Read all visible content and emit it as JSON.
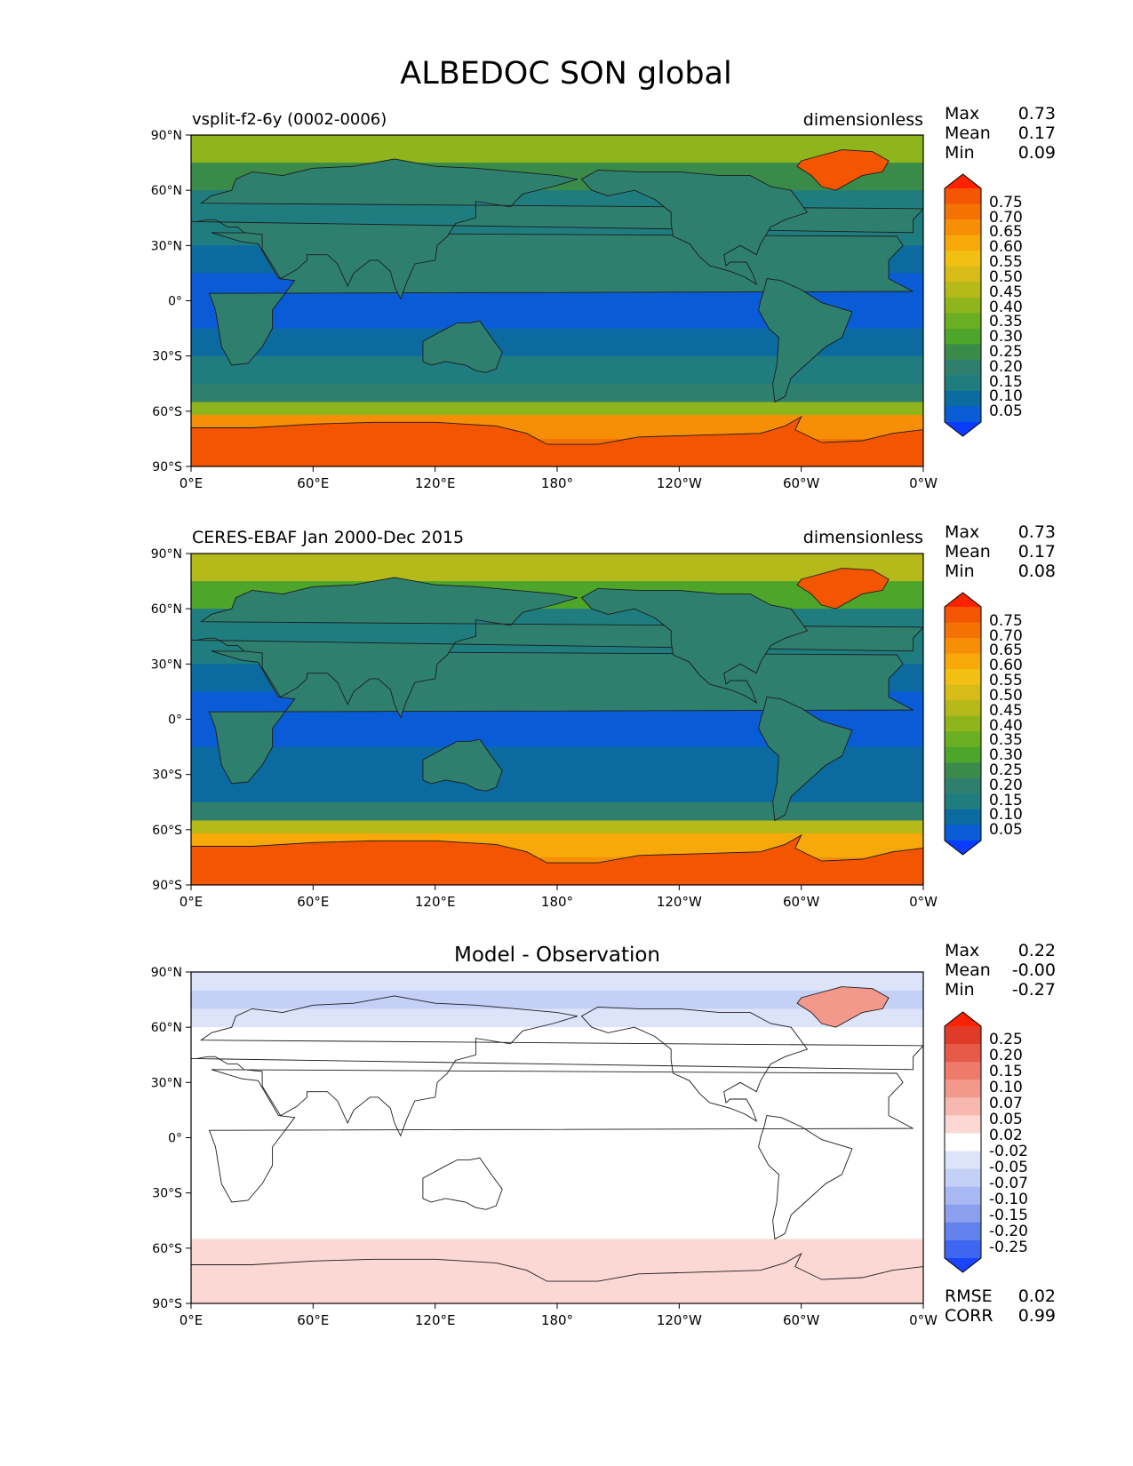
{
  "title": "ALBEDOC SON global",
  "colors": {
    "levels_main": [
      "#0a3cff",
      "#0a5cd6",
      "#0b6aa0",
      "#1f7d80",
      "#2e7f6e",
      "#3a8a4a",
      "#4da62a",
      "#6aae22",
      "#8fb51c",
      "#b5b91a",
      "#d7bb18",
      "#f2c012",
      "#f7a90a",
      "#f78f06",
      "#f57202",
      "#f45500",
      "#ff2200"
    ],
    "levels_diff": [
      "#1a44ff",
      "#3f66f0",
      "#6482ec",
      "#8aa0ee",
      "#a8b8f2",
      "#c4d0f6",
      "#dde4fa",
      "#ffffff",
      "#fbd8d4",
      "#f7b8b0",
      "#f3998c",
      "#ee7a6a",
      "#e85a48",
      "#e03a28",
      "#ff2200"
    ],
    "map_ocean_main": "#0b6aa0",
    "map_land_main": "#2e7f6e",
    "coastline": "#1c1c1c"
  },
  "axes_ticks": {
    "lat": [
      "90°N",
      "60°N",
      "30°N",
      "0°",
      "30°S",
      "60°S",
      "90°S"
    ],
    "lon": [
      "0°E",
      "60°E",
      "120°E",
      "180°",
      "120°W",
      "60°W",
      "0°W"
    ]
  },
  "panels": [
    {
      "label_left": "vsplit-f2-6y (0002-0006)",
      "label_right": "dimensionless",
      "stats": [
        {
          "k": "Max",
          "v": "0.73"
        },
        {
          "k": "Mean",
          "v": "0.17"
        },
        {
          "k": "Min",
          "v": "0.09"
        }
      ],
      "colorbar_ticks": [
        "0.75",
        "0.70",
        "0.65",
        "0.60",
        "0.55",
        "0.50",
        "0.45",
        "0.40",
        "0.35",
        "0.30",
        "0.25",
        "0.20",
        "0.15",
        "0.10",
        "0.05"
      ]
    },
    {
      "label_left": "CERES-EBAF Jan 2000-Dec 2015",
      "label_right": "dimensionless",
      "stats": [
        {
          "k": "Max",
          "v": "0.73"
        },
        {
          "k": "Mean",
          "v": "0.17"
        },
        {
          "k": "Min",
          "v": "0.08"
        }
      ],
      "colorbar_ticks": [
        "0.75",
        "0.70",
        "0.65",
        "0.60",
        "0.55",
        "0.50",
        "0.45",
        "0.40",
        "0.35",
        "0.30",
        "0.25",
        "0.20",
        "0.15",
        "0.10",
        "0.05"
      ]
    },
    {
      "title": "Model - Observation",
      "stats": [
        {
          "k": "Max",
          "v": "0.22"
        },
        {
          "k": "Mean",
          "v": "-0.00"
        },
        {
          "k": "Min",
          "v": "-0.27"
        }
      ],
      "colorbar_ticks": [
        "0.25",
        "0.20",
        "0.15",
        "0.10",
        "0.07",
        "0.05",
        "0.02",
        "-0.02",
        "-0.05",
        "-0.07",
        "-0.10",
        "-0.15",
        "-0.20",
        "-0.25"
      ],
      "bottom_stats": [
        {
          "k": "RMSE",
          "v": "0.02"
        },
        {
          "k": "CORR",
          "v": "0.99"
        }
      ]
    }
  ],
  "chart_data": [
    {
      "type": "heatmap",
      "title": "vsplit-f2-6y (0002-0006)",
      "units": "dimensionless",
      "x_range": [
        0,
        360
      ],
      "y_range": [
        -90,
        90
      ],
      "zonal_profile": [
        {
          "lat": 90,
          "value": 0.52
        },
        {
          "lat": 75,
          "value": 0.32
        },
        {
          "lat": 60,
          "value": 0.18
        },
        {
          "lat": 45,
          "value": 0.15
        },
        {
          "lat": 30,
          "value": 0.14
        },
        {
          "lat": 15,
          "value": 0.09
        },
        {
          "lat": 0,
          "value": 0.09
        },
        {
          "lat": -15,
          "value": 0.09
        },
        {
          "lat": -30,
          "value": 0.13
        },
        {
          "lat": -45,
          "value": 0.15
        },
        {
          "lat": -55,
          "value": 0.25
        },
        {
          "lat": -62,
          "value": 0.55
        },
        {
          "lat": -75,
          "value": 0.68
        },
        {
          "lat": -90,
          "value": 0.7
        }
      ],
      "max": 0.73,
      "mean": 0.17,
      "min": 0.09
    },
    {
      "type": "heatmap",
      "title": "CERES-EBAF Jan 2000-Dec 2015",
      "units": "dimensionless",
      "x_range": [
        0,
        360
      ],
      "y_range": [
        -90,
        90
      ],
      "zonal_profile": [
        {
          "lat": 90,
          "value": 0.55
        },
        {
          "lat": 75,
          "value": 0.38
        },
        {
          "lat": 60,
          "value": 0.2
        },
        {
          "lat": 45,
          "value": 0.16
        },
        {
          "lat": 30,
          "value": 0.13
        },
        {
          "lat": 15,
          "value": 0.09
        },
        {
          "lat": 0,
          "value": 0.09
        },
        {
          "lat": -15,
          "value": 0.09
        },
        {
          "lat": -30,
          "value": 0.11
        },
        {
          "lat": -45,
          "value": 0.15
        },
        {
          "lat": -55,
          "value": 0.3
        },
        {
          "lat": -62,
          "value": 0.55
        },
        {
          "lat": -75,
          "value": 0.62
        },
        {
          "lat": -90,
          "value": 0.65
        }
      ],
      "max": 0.73,
      "mean": 0.17,
      "min": 0.08
    },
    {
      "type": "heatmap",
      "title": "Model - Observation",
      "x_range": [
        0,
        360
      ],
      "y_range": [
        -90,
        90
      ],
      "zonal_profile": [
        {
          "lat": 90,
          "value": -0.02
        },
        {
          "lat": 80,
          "value": -0.1
        },
        {
          "lat": 70,
          "value": -0.05
        },
        {
          "lat": 60,
          "value": -0.03
        },
        {
          "lat": 40,
          "value": 0.0
        },
        {
          "lat": 0,
          "value": 0.0
        },
        {
          "lat": -40,
          "value": 0.0
        },
        {
          "lat": -55,
          "value": -0.02
        },
        {
          "lat": -62,
          "value": 0.05
        },
        {
          "lat": -72,
          "value": 0.04
        },
        {
          "lat": -90,
          "value": 0.03
        }
      ],
      "max": 0.22,
      "mean": -0.0,
      "min": -0.27,
      "rmse": 0.02,
      "corr": 0.99
    }
  ]
}
